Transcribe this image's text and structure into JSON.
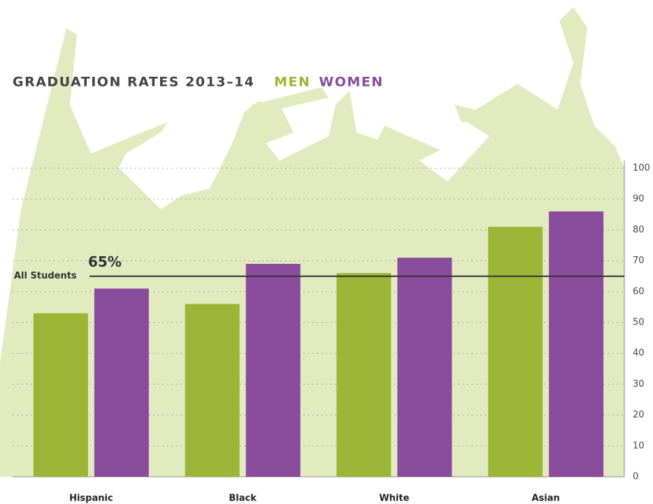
{
  "chart_data": {
    "type": "bar",
    "title": "GRADUATION RATES 2013–14",
    "categories": [
      "Hispanic",
      "Black",
      "White",
      "Asian"
    ],
    "series": [
      {
        "name": "MEN",
        "color": "#9db536",
        "values": [
          53,
          56,
          66,
          81
        ]
      },
      {
        "name": "WOMEN",
        "color": "#8a4b9c",
        "values": [
          61,
          69,
          71,
          86
        ]
      }
    ],
    "ylim": [
      0,
      100
    ],
    "yticks": [
      0,
      10,
      20,
      30,
      40,
      50,
      60,
      70,
      80,
      90,
      100
    ],
    "grid": true,
    "reference_line": {
      "name": "All Students",
      "value": 65,
      "value_label": "65%"
    }
  }
}
